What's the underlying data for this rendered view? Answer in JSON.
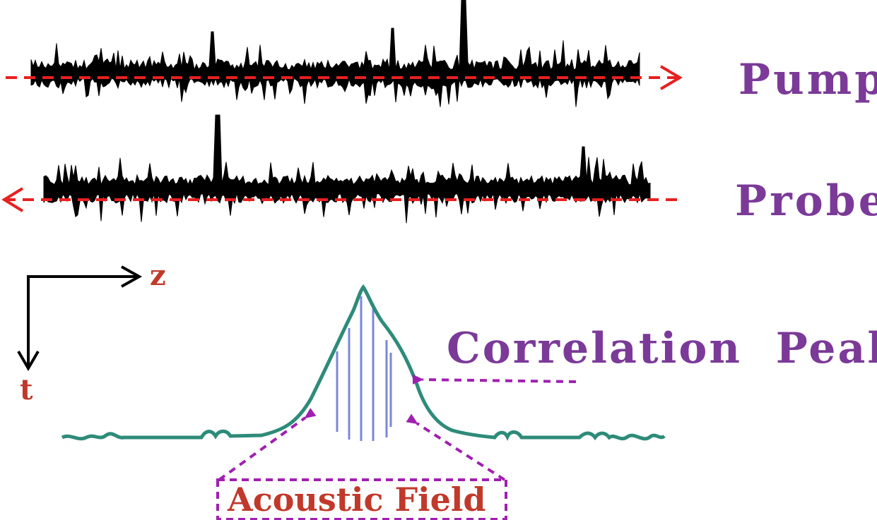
{
  "labels": {
    "pump": "Pump",
    "probe": "Probe",
    "z_axis": "z",
    "t_axis": "t",
    "correlation_peak": "Correlation  Peak",
    "acoustic_field": "Acoustic Field"
  },
  "colors": {
    "purple_label": "#7b3a98",
    "red_label": "#c0392b",
    "dashed_arrow": "#e8201f",
    "noise": "#000000",
    "curve": "#2e8b79",
    "field_lines": "#7c87d6",
    "pointer": "#a020b0"
  }
}
